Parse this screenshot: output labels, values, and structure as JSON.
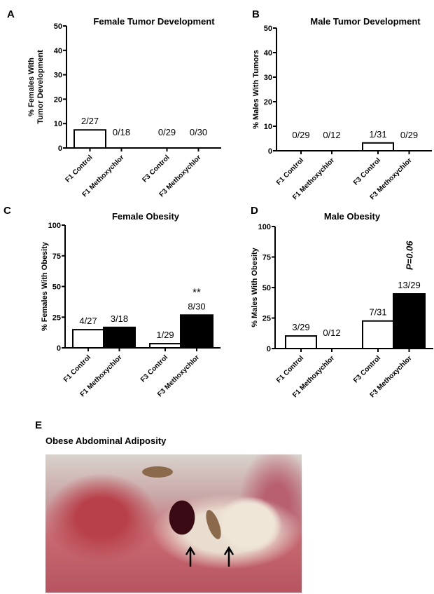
{
  "chart_data": [
    {
      "panel": "A",
      "type": "bar",
      "title": "Female Tumor Development",
      "ylabel": "% Females With Tumor Development",
      "ylim": [
        0,
        50
      ],
      "yticks": [
        0,
        10,
        20,
        30,
        40,
        50
      ],
      "categories": [
        "F1 Control",
        "F1 Methoxychlor",
        "F3 Control",
        "F3 Methoxychlor"
      ],
      "values": [
        7.4,
        0,
        0,
        0
      ],
      "fills": [
        "white",
        "black",
        "white",
        "black"
      ],
      "labels": [
        "2/27",
        "0/18",
        "0/29",
        "0/30"
      ],
      "annotations": [
        "",
        "",
        "",
        ""
      ]
    },
    {
      "panel": "B",
      "type": "bar",
      "title": "Male Tumor Development",
      "ylabel": "% Males With Tumors",
      "ylim": [
        0,
        50
      ],
      "yticks": [
        0,
        10,
        20,
        30,
        40,
        50
      ],
      "categories": [
        "F1 Control",
        "F1 Methoxychlor",
        "F3 Control",
        "F3 Methoxychlor"
      ],
      "values": [
        0,
        0,
        3.2,
        0
      ],
      "fills": [
        "white",
        "black",
        "white",
        "black"
      ],
      "labels": [
        "0/29",
        "0/12",
        "1/31",
        "0/29"
      ],
      "annotations": [
        "",
        "",
        "",
        ""
      ]
    },
    {
      "panel": "C",
      "type": "bar",
      "title": "Female Obesity",
      "ylabel": "% Females With Obesity",
      "ylim": [
        0,
        100
      ],
      "yticks": [
        0,
        25,
        50,
        75,
        100
      ],
      "categories": [
        "F1 Control",
        "F1 Methoxychlor",
        "F3 Control",
        "F3 Methoxychlor"
      ],
      "values": [
        14.8,
        16.7,
        3.4,
        26.7
      ],
      "fills": [
        "white",
        "black",
        "white",
        "black"
      ],
      "labels": [
        "4/27",
        "3/18",
        "1/29",
        "8/30"
      ],
      "annotations": [
        "",
        "",
        "",
        "**"
      ]
    },
    {
      "panel": "D",
      "type": "bar",
      "title": "Male Obesity",
      "ylabel": "% Males With Obesity",
      "ylim": [
        0,
        100
      ],
      "yticks": [
        0,
        25,
        50,
        75,
        100
      ],
      "categories": [
        "F1 Control",
        "F1 Methoxychlor",
        "F3 Control",
        "F3 Methoxychlor"
      ],
      "values": [
        10.3,
        0,
        22.6,
        44.8
      ],
      "fills": [
        "white",
        "black",
        "white",
        "black"
      ],
      "labels": [
        "3/29",
        "0/12",
        "7/31",
        "13/29"
      ],
      "annotations": [
        "",
        "",
        "",
        "P=0.06"
      ]
    }
  ],
  "photo": {
    "panel": "E",
    "title": "Obese Abdominal Adiposity"
  }
}
